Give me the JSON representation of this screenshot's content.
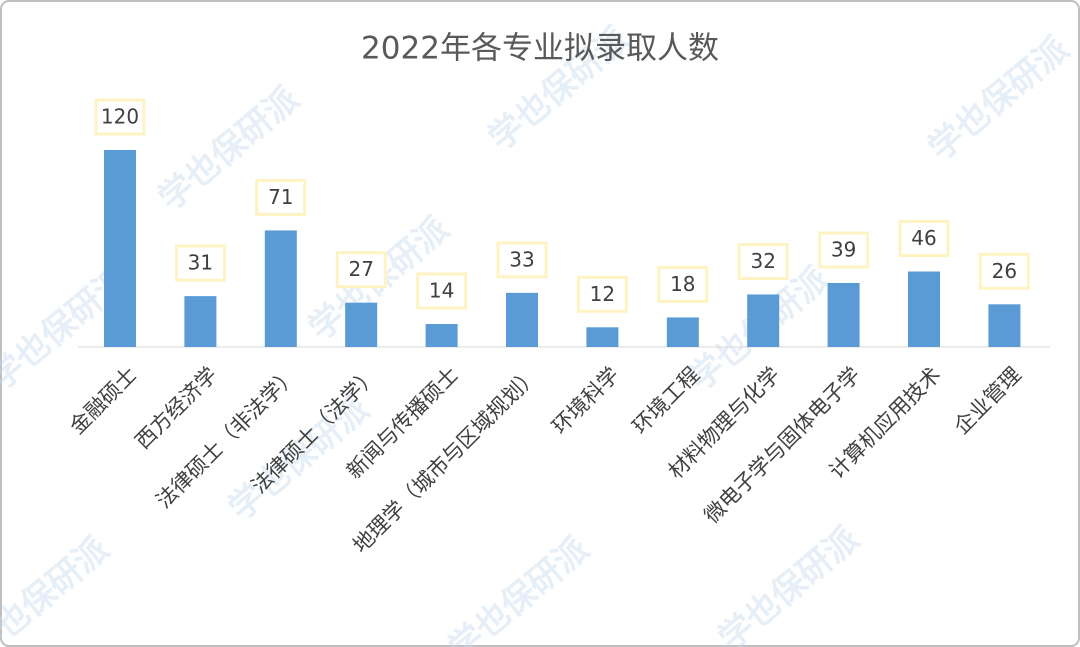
{
  "chart_data": {
    "type": "bar",
    "title": "2022年各专业拟录取人数",
    "categories": [
      "金融硕士",
      "西方经济学",
      "法律硕士（非法学）",
      "法律硕士（法学）",
      "新闻与传播硕士",
      "地理学（城市与区域规划）",
      "环境科学",
      "环境工程",
      "材料物理与化学",
      "微电子学与固体电子学",
      "计算机应用技术",
      "企业管理"
    ],
    "values": [
      120,
      31,
      71,
      27,
      14,
      33,
      12,
      18,
      32,
      39,
      46,
      26
    ],
    "color": "#5b9bd5",
    "watermark": "学也保研派"
  }
}
